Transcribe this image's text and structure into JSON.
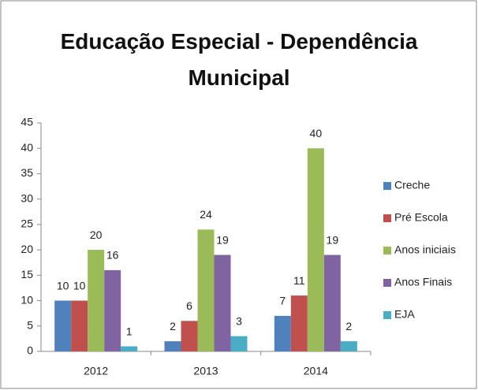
{
  "chart_data": {
    "type": "bar",
    "title": "Educação Especial - Dependência Municipal",
    "categories": [
      "2012",
      "2013",
      "2014"
    ],
    "series": [
      {
        "name": "Creche",
        "color": "#4f81bd",
        "values": [
          10,
          2,
          7
        ]
      },
      {
        "name": "Pré Escola",
        "color": "#c0504d",
        "values": [
          10,
          6,
          11
        ]
      },
      {
        "name": "Anos iniciais",
        "color": "#9bbb59",
        "values": [
          20,
          24,
          40
        ]
      },
      {
        "name": "Anos Finais",
        "color": "#8064a2",
        "values": [
          16,
          19,
          19
        ]
      },
      {
        "name": "EJA",
        "color": "#4bacc6",
        "values": [
          1,
          3,
          2
        ]
      }
    ],
    "ylim": [
      0,
      45
    ],
    "yticks": [
      0,
      5,
      10,
      15,
      20,
      25,
      30,
      35,
      40,
      45
    ],
    "grid": false,
    "legend": "right"
  }
}
